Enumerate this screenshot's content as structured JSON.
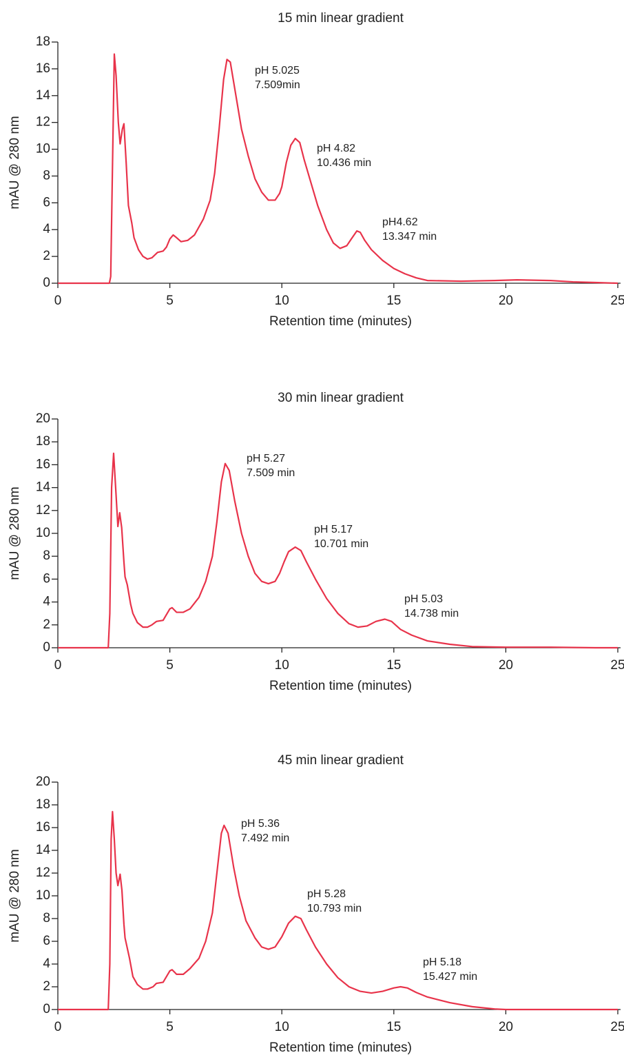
{
  "chart_data": [
    {
      "type": "line",
      "title": "15 min linear gradient",
      "y_label": "mAU @ 280 nm",
      "x_label": "Retention time (minutes)",
      "color": "#e8334a",
      "xlim": [
        0,
        25
      ],
      "ylim": [
        0,
        18
      ],
      "xticks": [
        0,
        5,
        10,
        15,
        20,
        25
      ],
      "yticks": [
        0,
        2,
        4,
        6,
        8,
        10,
        12,
        14,
        16,
        18
      ],
      "annotations": [
        [
          "pH 5.025",
          "7.509min"
        ],
        [
          "pH 4.82",
          "10.436 min"
        ],
        [
          "pH4.62",
          "13.347 min"
        ]
      ],
      "x": [
        0,
        2.3,
        2.36,
        2.52,
        2.6,
        2.7,
        2.78,
        2.88,
        2.95,
        3.05,
        3.15,
        3.3,
        3.4,
        3.6,
        3.8,
        4.0,
        4.2,
        4.45,
        4.7,
        4.85,
        5.0,
        5.15,
        5.3,
        5.5,
        5.8,
        6.1,
        6.5,
        6.8,
        7.0,
        7.2,
        7.4,
        7.55,
        7.7,
        7.9,
        8.2,
        8.5,
        8.8,
        9.1,
        9.4,
        9.7,
        9.9,
        10.0,
        10.2,
        10.4,
        10.6,
        10.8,
        11.0,
        11.3,
        11.6,
        12.0,
        12.3,
        12.6,
        12.9,
        13.1,
        13.35,
        13.5,
        13.7,
        14.0,
        14.5,
        15.0,
        15.5,
        16.0,
        16.5,
        18,
        19.5,
        20.5,
        22,
        23,
        24,
        25
      ],
      "values": [
        0,
        0,
        0.5,
        17.1,
        15.5,
        12,
        10.4,
        11.5,
        11.9,
        9,
        5.8,
        4.5,
        3.4,
        2.5,
        2.0,
        1.8,
        1.9,
        2.3,
        2.4,
        2.7,
        3.3,
        3.6,
        3.4,
        3.1,
        3.2,
        3.6,
        4.8,
        6.2,
        8.2,
        11.5,
        15.2,
        16.7,
        16.5,
        14.5,
        11.5,
        9.5,
        7.8,
        6.8,
        6.2,
        6.2,
        6.7,
        7.2,
        9.0,
        10.3,
        10.8,
        10.5,
        9.2,
        7.5,
        5.8,
        4.0,
        3.0,
        2.6,
        2.8,
        3.3,
        3.9,
        3.8,
        3.2,
        2.5,
        1.7,
        1.1,
        0.7,
        0.4,
        0.2,
        0.15,
        0.2,
        0.25,
        0.2,
        0.1,
        0.05,
        0
      ]
    },
    {
      "type": "line",
      "title": "30 min linear gradient",
      "y_label": "mAU @ 280 nm",
      "x_label": "Retention time (minutes)",
      "color": "#e8334a",
      "xlim": [
        0,
        25
      ],
      "ylim": [
        0,
        20
      ],
      "xticks": [
        0,
        5,
        10,
        15,
        20,
        25
      ],
      "yticks": [
        0,
        2,
        4,
        6,
        8,
        10,
        12,
        14,
        16,
        18,
        20
      ],
      "annotations": [
        [
          "pH 5.27",
          "7.509 min"
        ],
        [
          "pH 5.17",
          "10.701 min"
        ],
        [
          "pH 5.03",
          "14.738 min"
        ]
      ],
      "x": [
        0,
        2.25,
        2.32,
        2.4,
        2.49,
        2.58,
        2.68,
        2.76,
        2.85,
        2.95,
        3.0,
        3.1,
        3.25,
        3.35,
        3.55,
        3.8,
        4.0,
        4.2,
        4.4,
        4.7,
        4.85,
        5.0,
        5.1,
        5.3,
        5.6,
        5.9,
        6.3,
        6.6,
        6.9,
        7.1,
        7.3,
        7.47,
        7.65,
        7.9,
        8.2,
        8.5,
        8.8,
        9.1,
        9.4,
        9.7,
        9.9,
        10.1,
        10.3,
        10.6,
        10.85,
        11.1,
        11.5,
        12.0,
        12.5,
        13.0,
        13.4,
        13.8,
        14.2,
        14.6,
        14.9,
        15.3,
        15.8,
        16.5,
        17.5,
        18.5,
        20,
        22,
        24,
        25
      ],
      "values": [
        0,
        0,
        3,
        14,
        17.0,
        14,
        10.6,
        11.8,
        10.5,
        7.5,
        6.2,
        5.5,
        3.8,
        3.0,
        2.2,
        1.8,
        1.8,
        2.0,
        2.3,
        2.4,
        2.9,
        3.4,
        3.5,
        3.1,
        3.1,
        3.4,
        4.4,
        5.8,
        8.0,
        11.0,
        14.5,
        16.1,
        15.5,
        12.8,
        10.0,
        8.0,
        6.5,
        5.8,
        5.6,
        5.8,
        6.5,
        7.5,
        8.4,
        8.8,
        8.5,
        7.5,
        6.0,
        4.3,
        3.0,
        2.1,
        1.8,
        1.9,
        2.3,
        2.5,
        2.3,
        1.6,
        1.1,
        0.6,
        0.3,
        0.1,
        0.05,
        0.05,
        0,
        0
      ]
    },
    {
      "type": "line",
      "title": "45 min linear gradient",
      "y_label": "mAU @ 280 nm",
      "x_label": "Retention time (minutes)",
      "color": "#e8334a",
      "xlim": [
        0,
        25
      ],
      "ylim": [
        0,
        20
      ],
      "xticks": [
        0,
        5,
        10,
        15,
        20,
        25
      ],
      "yticks": [
        0,
        2,
        4,
        6,
        8,
        10,
        12,
        14,
        16,
        18,
        20
      ],
      "annotations": [
        [
          "pH 5.36",
          "7.492 min"
        ],
        [
          "pH 5.28",
          "10.793 min"
        ],
        [
          "pH 5.18",
          "15.427 min"
        ]
      ],
      "x": [
        0,
        2.25,
        2.32,
        2.38,
        2.44,
        2.52,
        2.6,
        2.68,
        2.78,
        2.86,
        2.95,
        3.0,
        3.2,
        3.35,
        3.55,
        3.8,
        4.0,
        4.25,
        4.4,
        4.7,
        4.85,
        5.0,
        5.1,
        5.3,
        5.6,
        5.9,
        6.3,
        6.6,
        6.9,
        7.1,
        7.3,
        7.42,
        7.6,
        7.85,
        8.1,
        8.4,
        8.8,
        9.1,
        9.4,
        9.7,
        10.0,
        10.3,
        10.6,
        10.85,
        11.1,
        11.5,
        12.0,
        12.5,
        13.0,
        13.5,
        14.0,
        14.5,
        15.0,
        15.3,
        15.6,
        16.0,
        16.5,
        17.5,
        18.5,
        19.5,
        20,
        25
      ],
      "values": [
        0,
        0,
        4,
        15,
        17.4,
        15,
        12,
        10.9,
        11.9,
        10.5,
        7.5,
        6.3,
        4.5,
        2.9,
        2.2,
        1.8,
        1.8,
        2.0,
        2.3,
        2.4,
        2.9,
        3.4,
        3.5,
        3.1,
        3.1,
        3.6,
        4.5,
        6.0,
        8.5,
        12.0,
        15.5,
        16.2,
        15.5,
        12.5,
        10.0,
        7.8,
        6.3,
        5.5,
        5.3,
        5.5,
        6.4,
        7.6,
        8.2,
        8.0,
        7.0,
        5.5,
        4.0,
        2.8,
        2.0,
        1.6,
        1.45,
        1.6,
        1.9,
        2.0,
        1.9,
        1.5,
        1.1,
        0.6,
        0.25,
        0.05,
        0,
        0
      ]
    }
  ]
}
